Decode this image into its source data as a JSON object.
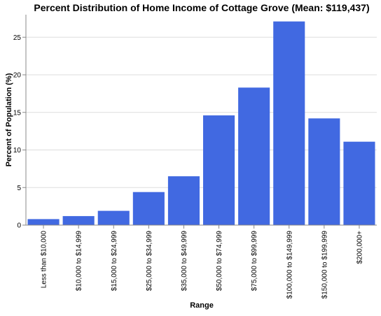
{
  "chart_data": {
    "type": "bar",
    "title": "Percent Distribution of Home Income of Cottage Grove (Mean: $119,437)",
    "xlabel": "Range",
    "ylabel": "Percent of Population (%)",
    "categories": [
      "Less than $10,000",
      "$10,000 to $14,999",
      "$15,000 to $24,999",
      "$25,000 to $34,999",
      "$35,000 to $49,999",
      "$50,000 to $74,999",
      "$75,000 to $99,999",
      "$100,000 to $149,999",
      "$150,000 to $199,999",
      "$200,000+"
    ],
    "values": [
      0.8,
      1.2,
      1.9,
      4.4,
      6.5,
      14.6,
      18.3,
      27.1,
      14.2,
      11.1
    ],
    "ylim": [
      0,
      28
    ],
    "yticks": [
      0,
      5,
      10,
      15,
      20,
      25
    ],
    "grid": true,
    "bar_color": "#4169e1"
  }
}
